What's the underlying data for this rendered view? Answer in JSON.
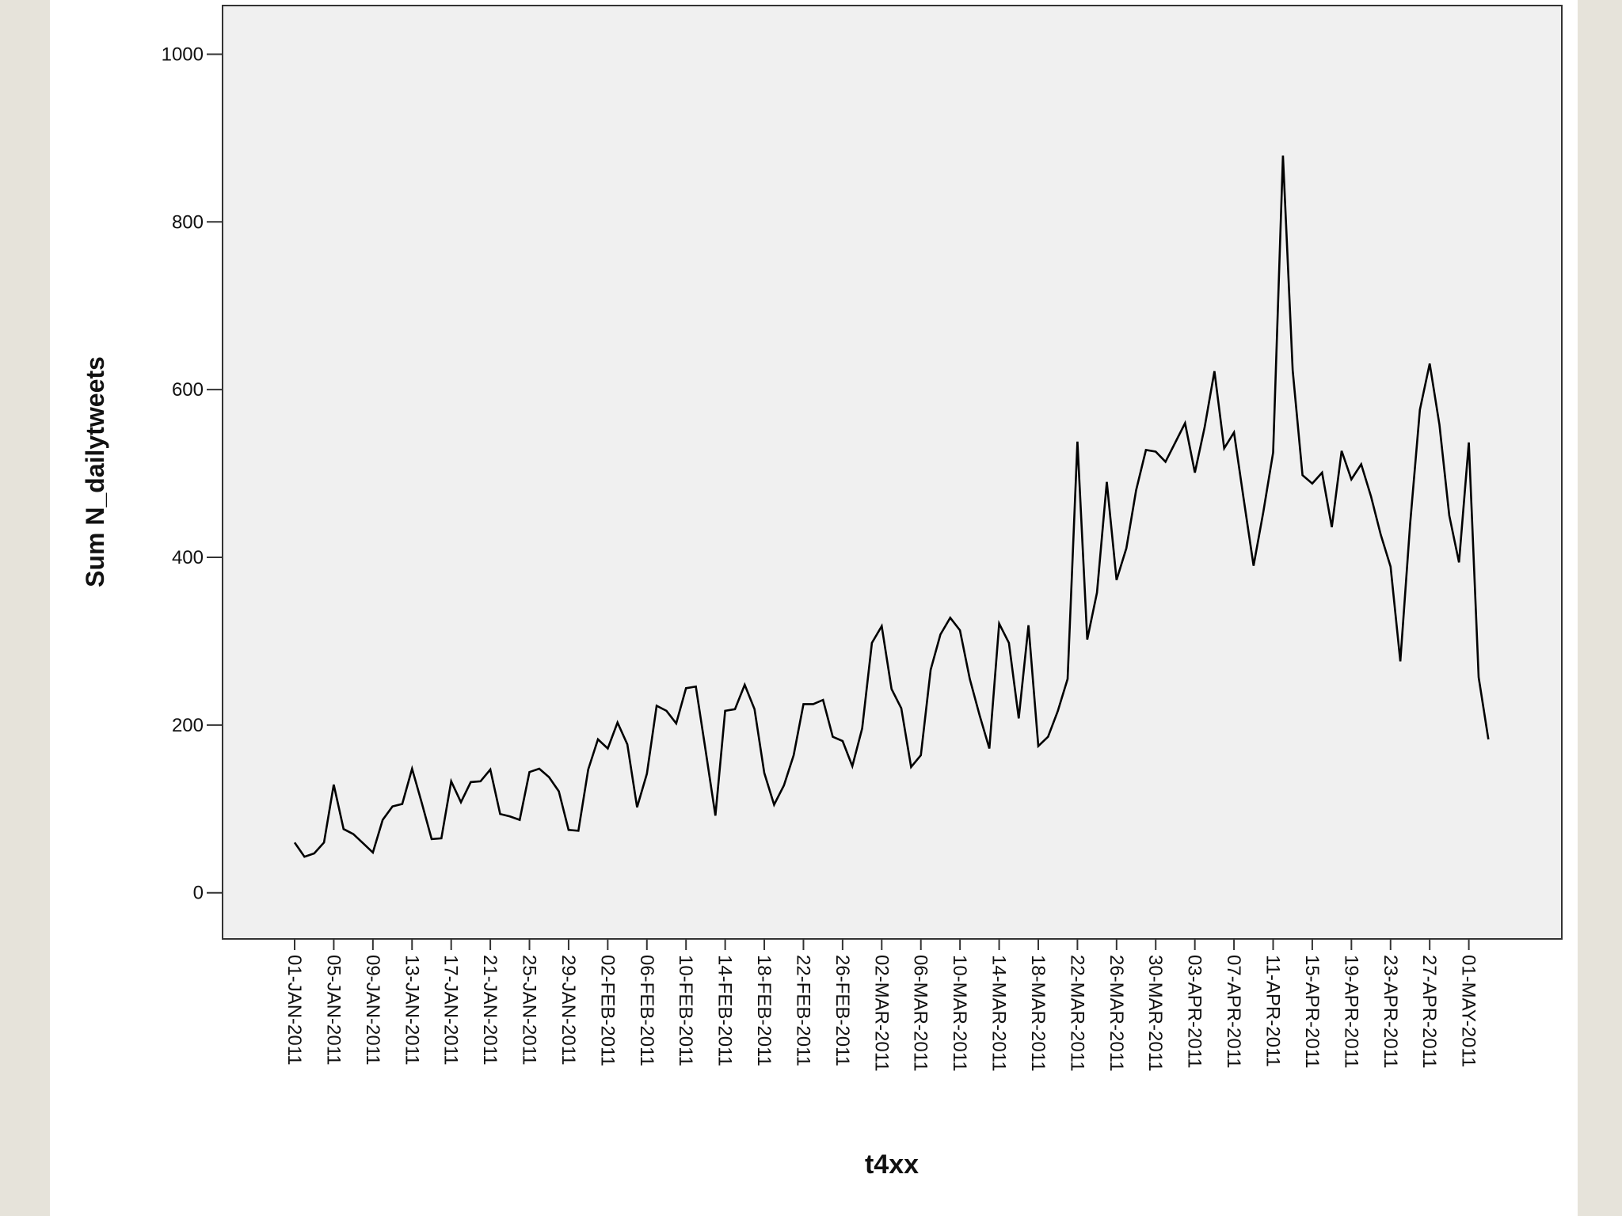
{
  "chart_data": {
    "type": "line",
    "x_label": "t4xx",
    "y_label": "Sum N_dailytweets",
    "categories": [
      "01-JAN-2011",
      null,
      null,
      null,
      "05-JAN-2011",
      null,
      null,
      null,
      "09-JAN-2011",
      null,
      null,
      null,
      "13-JAN-2011",
      null,
      null,
      null,
      "17-JAN-2011",
      null,
      null,
      null,
      "21-JAN-2011",
      null,
      null,
      null,
      "25-JAN-2011",
      null,
      null,
      null,
      "29-JAN-2011",
      null,
      null,
      null,
      "02-FEB-2011",
      null,
      null,
      null,
      "06-FEB-2011",
      null,
      null,
      null,
      "10-FEB-2011",
      null,
      null,
      null,
      "14-FEB-2011",
      null,
      null,
      null,
      "18-FEB-2011",
      null,
      null,
      null,
      "22-FEB-2011",
      null,
      null,
      null,
      "26-FEB-2011",
      null,
      null,
      null,
      "02-MAR-2011",
      null,
      null,
      null,
      "06-MAR-2011",
      null,
      null,
      null,
      "10-MAR-2011",
      null,
      null,
      null,
      "14-MAR-2011",
      null,
      null,
      null,
      "18-MAR-2011",
      null,
      null,
      null,
      "22-MAR-2011",
      null,
      null,
      null,
      "26-MAR-2011",
      null,
      null,
      null,
      "30-MAR-2011",
      null,
      null,
      null,
      "03-APR-2011",
      null,
      null,
      null,
      "07-APR-2011",
      null,
      null,
      null,
      "11-APR-2011",
      null,
      null,
      null,
      "15-APR-2011",
      null,
      null,
      null,
      "19-APR-2011",
      null,
      null,
      null,
      "23-APR-2011",
      null,
      null,
      null,
      "27-APR-2011",
      null,
      null,
      null,
      "01-MAY-2011",
      null,
      null
    ],
    "values": [
      60,
      43,
      47,
      60,
      129,
      76,
      70,
      59,
      48,
      87,
      103,
      106,
      148,
      107,
      64,
      65,
      133,
      108,
      132,
      133,
      147,
      94,
      91,
      87,
      144,
      148,
      138,
      121,
      75,
      74,
      147,
      183,
      172,
      203,
      177,
      102,
      142,
      223,
      217,
      202,
      244,
      246,
      170,
      92,
      217,
      219,
      248,
      219,
      143,
      105,
      128,
      164,
      225,
      225,
      230,
      186,
      181,
      151,
      196,
      298,
      318,
      243,
      220,
      150,
      164,
      266,
      308,
      328,
      313,
      255,
      212,
      172,
      321,
      298,
      208,
      319,
      175,
      186,
      217,
      255,
      538,
      302,
      358,
      490,
      373,
      411,
      480,
      528,
      526,
      514,
      537,
      560,
      501,
      555,
      622,
      530,
      549,
      469,
      390,
      454,
      525,
      879,
      623,
      498,
      488,
      501,
      436,
      527,
      493,
      511,
      473,
      427,
      389,
      276,
      440,
      576,
      631,
      558,
      450,
      394,
      537,
      257,
      183
    ],
    "color": "#000000",
    "ylim": [
      -55,
      1058
    ],
    "yticks": [
      0,
      200,
      400,
      600,
      800,
      1000
    ],
    "grid": false
  }
}
